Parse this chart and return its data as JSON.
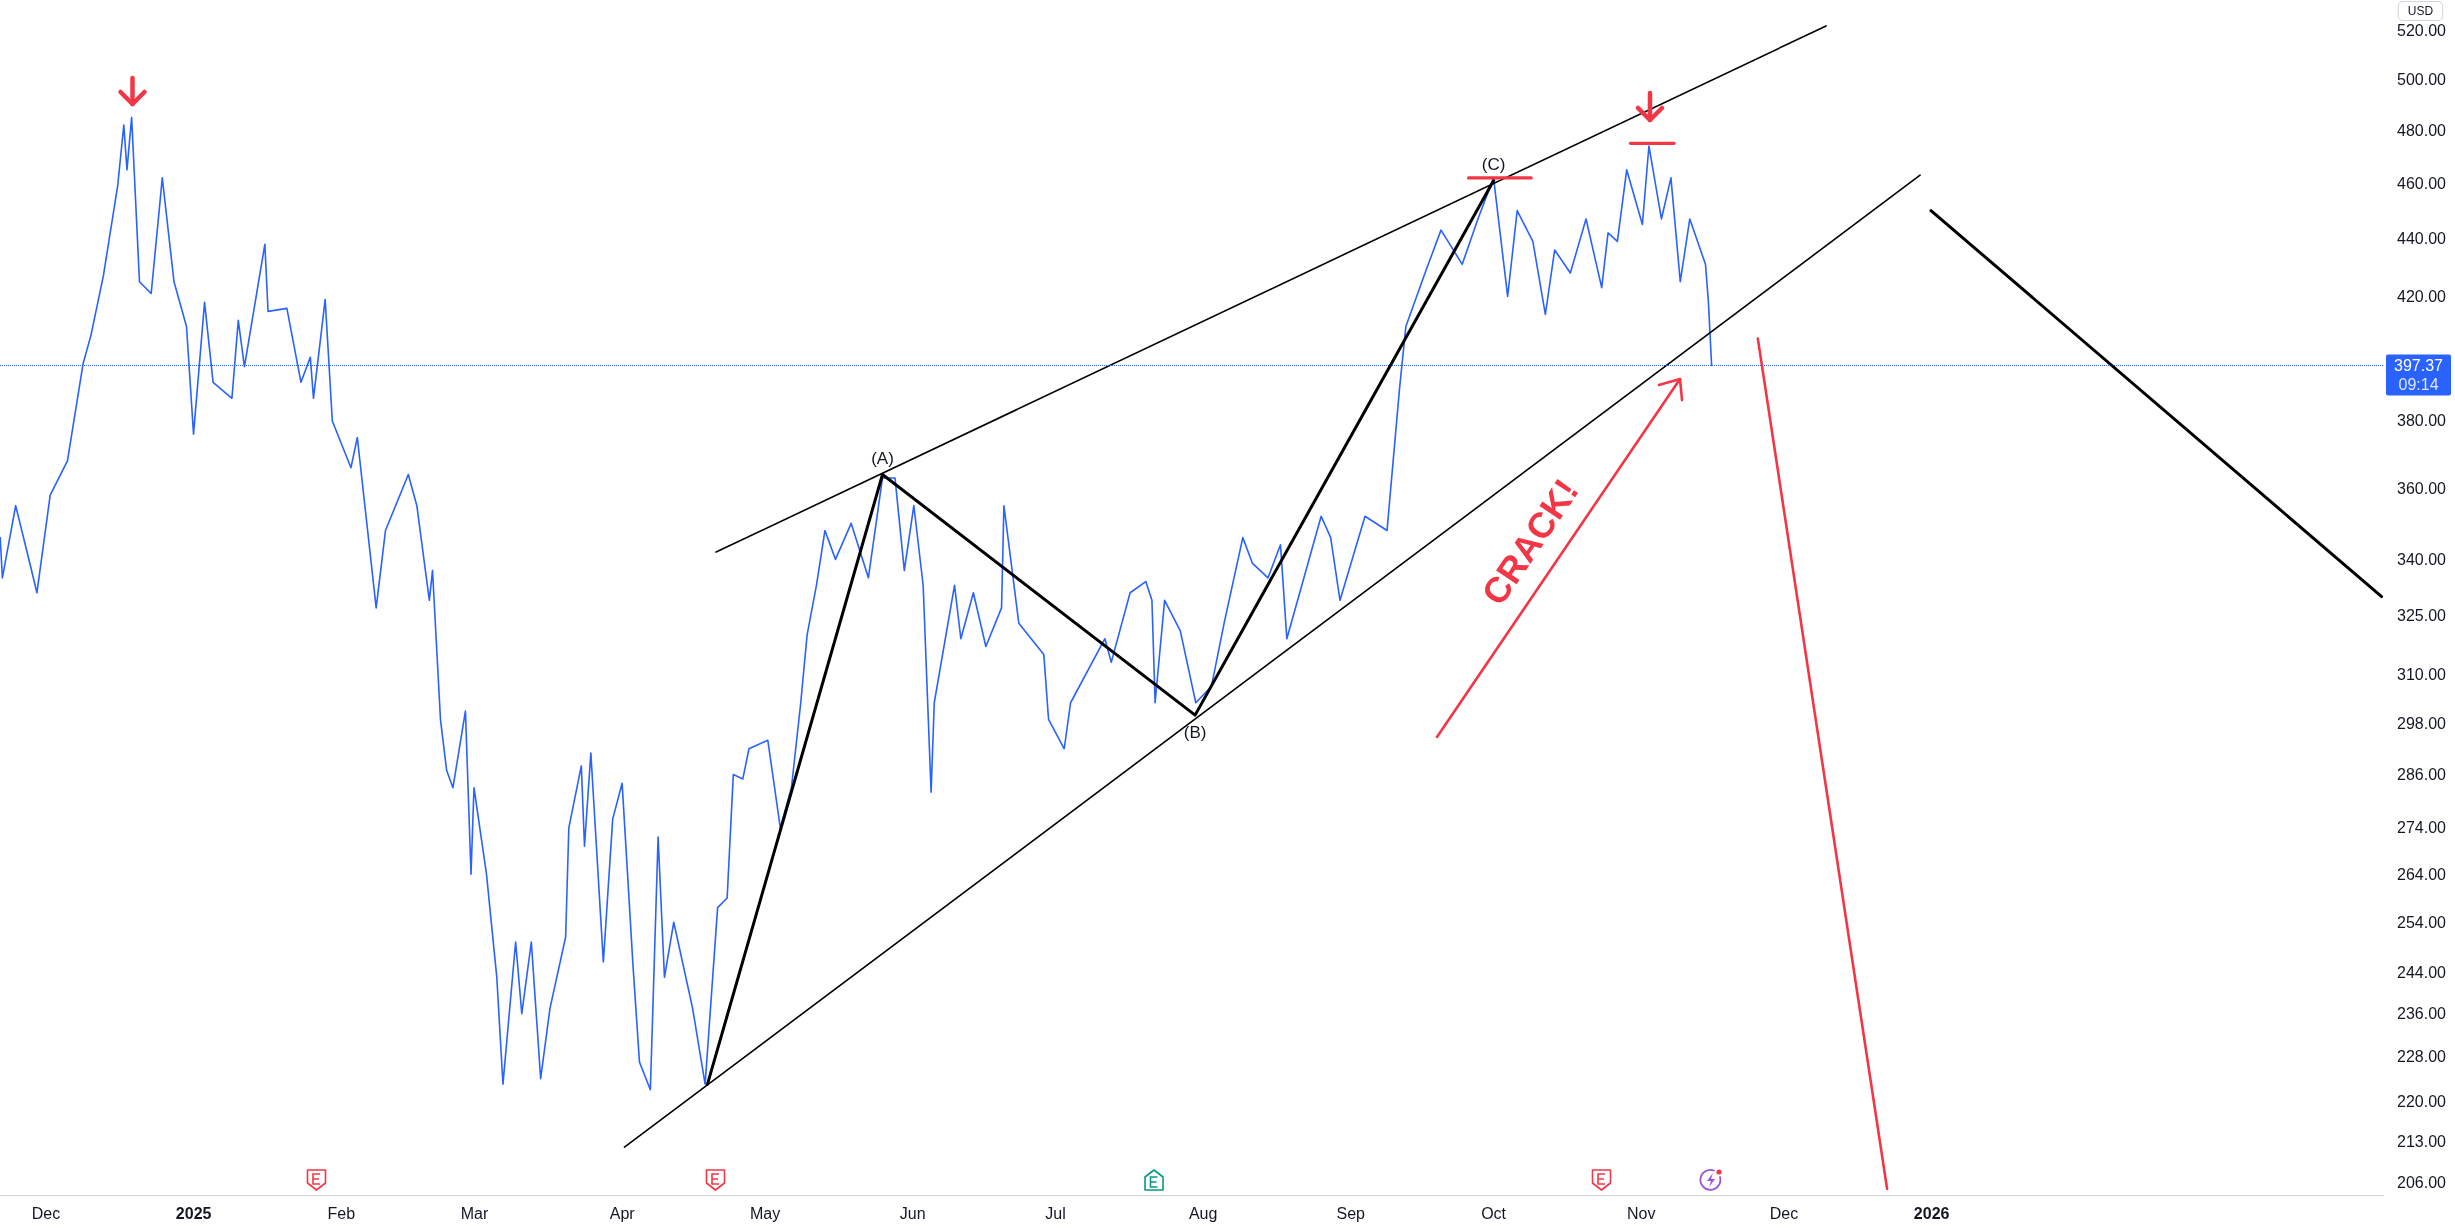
{
  "chart_data": {
    "type": "line",
    "ylabel": "USD",
    "log": true,
    "grid": false,
    "marker": "none",
    "xlim": [
      "2024-11-21T08:00",
      "2026-04-06T00:00"
    ],
    "ylim": [
      204,
      533
    ],
    "xticks": [
      {
        "value": "2024-12-01",
        "label": "Dec"
      },
      {
        "value": "2025-01-01",
        "label": "2025"
      },
      {
        "value": "2025-02-01",
        "label": "Feb"
      },
      {
        "value": "2025-03-01",
        "label": "Mar"
      },
      {
        "value": "2025-04-01",
        "label": "Apr"
      },
      {
        "value": "2025-05-01",
        "label": "May"
      },
      {
        "value": "2025-06-01",
        "label": "Jun"
      },
      {
        "value": "2025-07-01",
        "label": "Jul"
      },
      {
        "value": "2025-08-01",
        "label": "Aug"
      },
      {
        "value": "2025-09-01",
        "label": "Sep"
      },
      {
        "value": "2025-10-01",
        "label": "Oct"
      },
      {
        "value": "2025-11-01",
        "label": "Nov"
      },
      {
        "value": "2025-12-01",
        "label": "Dec"
      },
      {
        "value": "2026-01-01",
        "label": "2026"
      }
    ],
    "yticks": [
      {
        "value": 206,
        "label": "206.00"
      },
      {
        "value": 213,
        "label": "213.00"
      },
      {
        "value": 220,
        "label": "220.00"
      },
      {
        "value": 228,
        "label": "228.00"
      },
      {
        "value": 236,
        "label": "236.00"
      },
      {
        "value": 244,
        "label": "244.00"
      },
      {
        "value": 254,
        "label": "254.00"
      },
      {
        "value": 264,
        "label": "264.00"
      },
      {
        "value": 274,
        "label": "274.00"
      },
      {
        "value": 286,
        "label": "286.00"
      },
      {
        "value": 298,
        "label": "298.00"
      },
      {
        "value": 310,
        "label": "310.00"
      },
      {
        "value": 325,
        "label": "325.00"
      },
      {
        "value": 340,
        "label": "340.00"
      },
      {
        "value": 360,
        "label": "360.00"
      },
      {
        "value": 380,
        "label": "380.00"
      },
      {
        "value": 420,
        "label": "420.00"
      },
      {
        "value": 440,
        "label": "440.00"
      },
      {
        "value": 460,
        "label": "460.00"
      },
      {
        "value": 480,
        "label": "480.00"
      },
      {
        "value": 500,
        "label": "500.00"
      },
      {
        "value": 520,
        "label": "520.00"
      }
    ],
    "series": [
      {
        "color": "#2962ff",
        "x": [
          "2024-11-21T09:00",
          "2024-11-21T20:00",
          "2024-11-24T15:00",
          "2024-11-27T14:00",
          "2024-11-29T02:00",
          "2024-12-01T21:00",
          "2024-12-05T12:00",
          "2024-12-08T19:00",
          "2024-12-10T10:00",
          "2024-12-13T01:00",
          "2024-12-16T01:00",
          "2024-12-17T08:00",
          "2024-12-18T00:00",
          "2024-12-18T23:30",
          "2024-12-20T15:00",
          "2024-12-23T02:00",
          "2024-12-25T10:00",
          "2024-12-27T21:00",
          "2024-12-30T12:00",
          "2024-12-31T23:30",
          "2025-01-03T07:00",
          "2025-01-05T02:00",
          "2025-01-09T01:00",
          "2025-01-10T09:00",
          "2025-01-11T16:00",
          "2025-01-15T23:00",
          "2025-01-16T15:00",
          "2025-01-20T14:00",
          "2025-01-23T13:00",
          "2025-01-25T12:00",
          "2025-01-26T04:00",
          "2025-01-28T15:00",
          "2025-01-30T03:00",
          "2025-02-03T01:00",
          "2025-02-04T09:00",
          "2025-02-08T08:00",
          "2025-02-10T07:00",
          "2025-02-15T02:00",
          "2025-02-16T21:00",
          "2025-02-19T12:00",
          "2025-02-20T04:00",
          "2025-02-21T20:00",
          "2025-02-23T03:00",
          "2025-02-24T11:00",
          "2025-02-27T02:00",
          "2025-02-28T06:00",
          "2025-02-28T21:00",
          "2025-03-03T12:00",
          "2025-03-05T16:00",
          "2025-03-06T23:00",
          "2025-03-09T15:00",
          "2025-03-10T22:00",
          "2025-03-12T22:00",
          "2025-03-14T21:00",
          "2025-03-16T20:00",
          "2025-03-20T03:00",
          "2025-03-20T19:00",
          "2025-03-23T10:00",
          "2025-03-24T02:00",
          "2025-03-25T10:00",
          "2025-03-28T01:00",
          "2025-03-30T00:15",
          "2025-03-31T23:40",
          "2025-04-03T07:00",
          "2025-04-04T15:00",
          "2025-04-06T22:00",
          "2025-04-08T13:00",
          "2025-04-09T21:00",
          "2025-04-11T20:00",
          "2025-04-15T19:00",
          "2025-04-18T10:00",
          "2025-04-21T01:00",
          "2025-04-23T01:00",
          "2025-04-24T08:00",
          "2025-04-26T08:00",
          "2025-04-27T15:00",
          "2025-05-01T14:00",
          "2025-05-04T05:00",
          "2025-05-06T13:00",
          "2025-05-08T12:00",
          "2025-05-09T20:00",
          "2025-05-11T19:00",
          "2025-05-13T14:00",
          "2025-05-15T19:00",
          "2025-05-19T02:00",
          "2025-05-22T17:00",
          "2025-05-25T16:00",
          "2025-05-28T07:00",
          "2025-05-30T06:00",
          "2025-06-01T06:00",
          "2025-06-03T05:00",
          "2025-06-04T21:00",
          "2025-06-05T13:00",
          "2025-06-09T19:00",
          "2025-06-11T03:00",
          "2025-06-13T18:00",
          "2025-06-16T09:00",
          "2025-06-19T16:00",
          "2025-06-20T04:00",
          "2025-06-23T07:00",
          "2025-06-28T13:00",
          "2025-06-29T13:00",
          "2025-07-02T20:00",
          "2025-07-04T04:00",
          "2025-07-11T09:00",
          "2025-07-12T17:00",
          "2025-07-16T16:00",
          "2025-07-19T23:00",
          "2025-07-21T06:00",
          "2025-07-21T22:00",
          "2025-07-23T22:00",
          "2025-07-27T05:00",
          "2025-07-30T11:00",
          "2025-08-02T18:00",
          "2025-08-05T10:00",
          "2025-08-09T08:00",
          "2025-08-11T08:00",
          "2025-08-14T15:00",
          "2025-08-17T06:00",
          "2025-08-18T14:00",
          "2025-08-25T19:00",
          "2025-08-27T19:00",
          "2025-08-29T18:00",
          "2025-09-04T00:00",
          "2025-09-08T15:00",
          "2025-09-11T06:00",
          "2025-09-12T14:00",
          "2025-09-16T20:00",
          "2025-09-19T23:00",
          "2025-09-24T10:00",
          "2025-09-27T17:00",
          "2025-10-01T00:00",
          "2025-10-03T23:00",
          "2025-10-05T23:00",
          "2025-10-09T06:00",
          "2025-10-11T21:00",
          "2025-10-13T20:00",
          "2025-10-17T03:00",
          "2025-10-20T10:00",
          "2025-10-23T17:00",
          "2025-10-25T01:00",
          "2025-10-27T00:00",
          "2025-10-28T23:00",
          "2025-11-01T06:00",
          "2025-11-02T15:00",
          "2025-11-05T06:00",
          "2025-11-07T06:00",
          "2025-11-09T05:00",
          "2025-11-11T05:00",
          "2025-11-14T12:00",
          "2025-11-15T03:00",
          "2025-11-15T19:00"
        ],
        "values": [
          346,
          335,
          355,
          339,
          331,
          358,
          368,
          398,
          407,
          427,
          459,
          482,
          465,
          485,
          425,
          421,
          462,
          425,
          410,
          376,
          418,
          392,
          387,
          412,
          397,
          438,
          415,
          416,
          392,
          400,
          387,
          419,
          380,
          366,
          375,
          327,
          348,
          364,
          355,
          329,
          337,
          299,
          287,
          283,
          301,
          264,
          283,
          264,
          243,
          223,
          250,
          236,
          250,
          224,
          237,
          251,
          274,
          288,
          270,
          291,
          246,
          276,
          284,
          245,
          227,
          222,
          272,
          243,
          254,
          237,
          223,
          257,
          259,
          286,
          285,
          292,
          294,
          274,
          283,
          303,
          320,
          333,
          348,
          340,
          350,
          335,
          363,
          363,
          337,
          355,
          333,
          282,
          303,
          333,
          319,
          331,
          317,
          327,
          355,
          323,
          315,
          299,
          292,
          303,
          319,
          313,
          331,
          334,
          329,
          303,
          329,
          321,
          303,
          307,
          323,
          346,
          339,
          335,
          344,
          319,
          352,
          346,
          329,
          352,
          348,
          390,
          410,
          429,
          443,
          431,
          447,
          462,
          420,
          450,
          439,
          414,
          436,
          428,
          447,
          423,
          442,
          439,
          465,
          445,
          474,
          447,
          462,
          425,
          447,
          431,
          418,
          397.37
        ]
      },
      {
        "color": "#000000",
        "x": [
          "2025-04-20T17:30",
          "2025-12-09T19:40"
        ],
        "values": [
          342,
          522
        ]
      },
      {
        "color": "#000000",
        "x": [
          "2025-04-01T11:30",
          "2025-12-29T13:40"
        ],
        "values": [
          212,
          463
        ]
      },
      {
        "color": "#000000",
        "x": [
          "2025-04-18T22:00",
          "2025-05-25T16:00",
          "2025-07-30T07:40",
          "2025-10-01T00:15"
        ],
        "values": [
          223,
          364,
          300,
          461
        ]
      },
      {
        "color": "#000000",
        "x": [
          "2025-12-31T20:40",
          "2026-04-05T12:00"
        ],
        "values": [
          450,
          330
        ]
      },
      {
        "color": "#f23645",
        "x": [
          "2025-11-25T12:00",
          "2025-12-22T15:30"
        ],
        "values": [
          406,
          205
        ]
      },
      {
        "color": "#f23645",
        "x": [
          "2025-09-25T17:45",
          "2025-10-08T21:40"
        ],
        "values": [
          462,
          462
        ]
      },
      {
        "color": "#f23645",
        "x": [
          "2025-10-29T18:30",
          "2025-11-07T21:50"
        ],
        "values": [
          475,
          475
        ]
      }
    ],
    "ref_lines": [
      {
        "axis": "y",
        "value": 397.37,
        "label": "397.37",
        "color": "#2962ff",
        "line_style": "dotted"
      }
    ],
    "annotations": [
      {
        "text": "(A)",
        "x": "2025-05-25T16:00",
        "y": 364
      },
      {
        "text": "(B)",
        "x": "2025-07-30T07:40",
        "y": 300
      },
      {
        "text": "(C)",
        "x": "2025-10-01T00:15",
        "y": 461
      },
      "CRACK!",
      "09:14"
    ]
  }
}
